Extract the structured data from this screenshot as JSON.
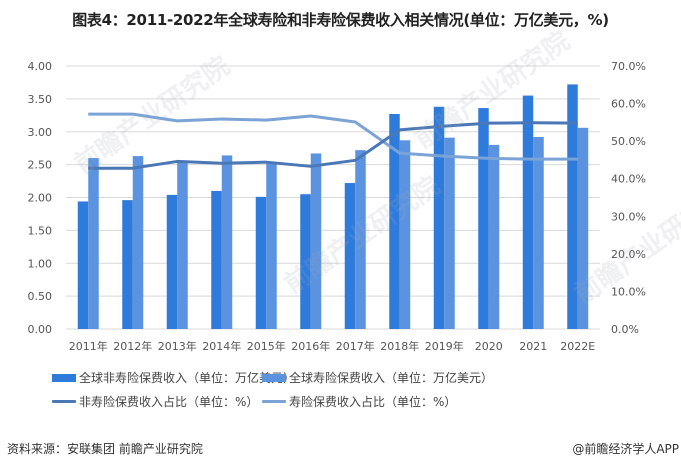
{
  "title": "图表4：2011-2022年全球寿险和非寿险保费收入相关情况(单位：万亿美元，%)",
  "legend": {
    "nonlife_bar": "全球非寿险保费收入（单位：万亿美元）",
    "life_bar": "全球寿险保费收入（单位：万亿美元）",
    "nonlife_line": "非寿险保费收入占比（单位：%）",
    "life_line": "寿险保费收入占比（单位：%）"
  },
  "footer": {
    "source": "资料来源：安联集团 前瞻产业研究院",
    "credit": "@前瞻经济学人APP"
  },
  "watermark": "前瞻产业研究院",
  "colors": {
    "nonlife_bar": "#2F7BDC",
    "life_bar": "#5B93E0",
    "nonlife_line": "#4A77B5",
    "life_line": "#7BA3D6",
    "grid": "#D9D9D9"
  },
  "chart_data": {
    "type": "bar+line",
    "title": "图表4：2011-2022年全球寿险和非寿险保费收入相关情况(单位：万亿美元，%)",
    "categories": [
      "2011年",
      "2012年",
      "2013年",
      "2014年",
      "2015年",
      "2016年",
      "2017年",
      "2018年",
      "2019年",
      "2020",
      "2021",
      "2022E"
    ],
    "left_axis": {
      "label": "万亿美元",
      "ylim": [
        0,
        4
      ],
      "ticks": [
        "0.00",
        "0.50",
        "1.00",
        "1.50",
        "2.00",
        "2.50",
        "3.00",
        "3.50",
        "4.00"
      ]
    },
    "right_axis": {
      "label": "%",
      "ylim": [
        0,
        70
      ],
      "ticks": [
        "0.0%",
        "10.0%",
        "20.0%",
        "30.0%",
        "40.0%",
        "50.0%",
        "60.0%",
        "70.0%"
      ]
    },
    "series": [
      {
        "name": "全球非寿险保费收入（单位：万亿美元）",
        "type": "bar",
        "axis": "left",
        "values": [
          1.94,
          1.96,
          2.04,
          2.1,
          2.01,
          2.05,
          2.22,
          3.27,
          3.38,
          3.36,
          3.55,
          3.72
        ]
      },
      {
        "name": "全球寿险保费收入（单位：万亿美元）",
        "type": "bar",
        "axis": "left",
        "values": [
          2.6,
          2.63,
          2.55,
          2.64,
          2.52,
          2.67,
          2.72,
          2.87,
          2.91,
          2.8,
          2.92,
          3.06
        ]
      },
      {
        "name": "非寿险保费收入占比（单位：%）",
        "type": "line",
        "axis": "right",
        "values": [
          42.8,
          42.8,
          44.6,
          44.1,
          44.4,
          43.3,
          44.9,
          53.0,
          54.0,
          54.8,
          54.9,
          54.8
        ]
      },
      {
        "name": "寿险保费收入占比（单位：%）",
        "type": "line",
        "axis": "right",
        "values": [
          57.2,
          57.2,
          55.4,
          55.9,
          55.6,
          56.7,
          55.1,
          46.8,
          46.0,
          45.4,
          45.2,
          45.2
        ]
      }
    ],
    "grid": true,
    "legend_position": "bottom"
  }
}
